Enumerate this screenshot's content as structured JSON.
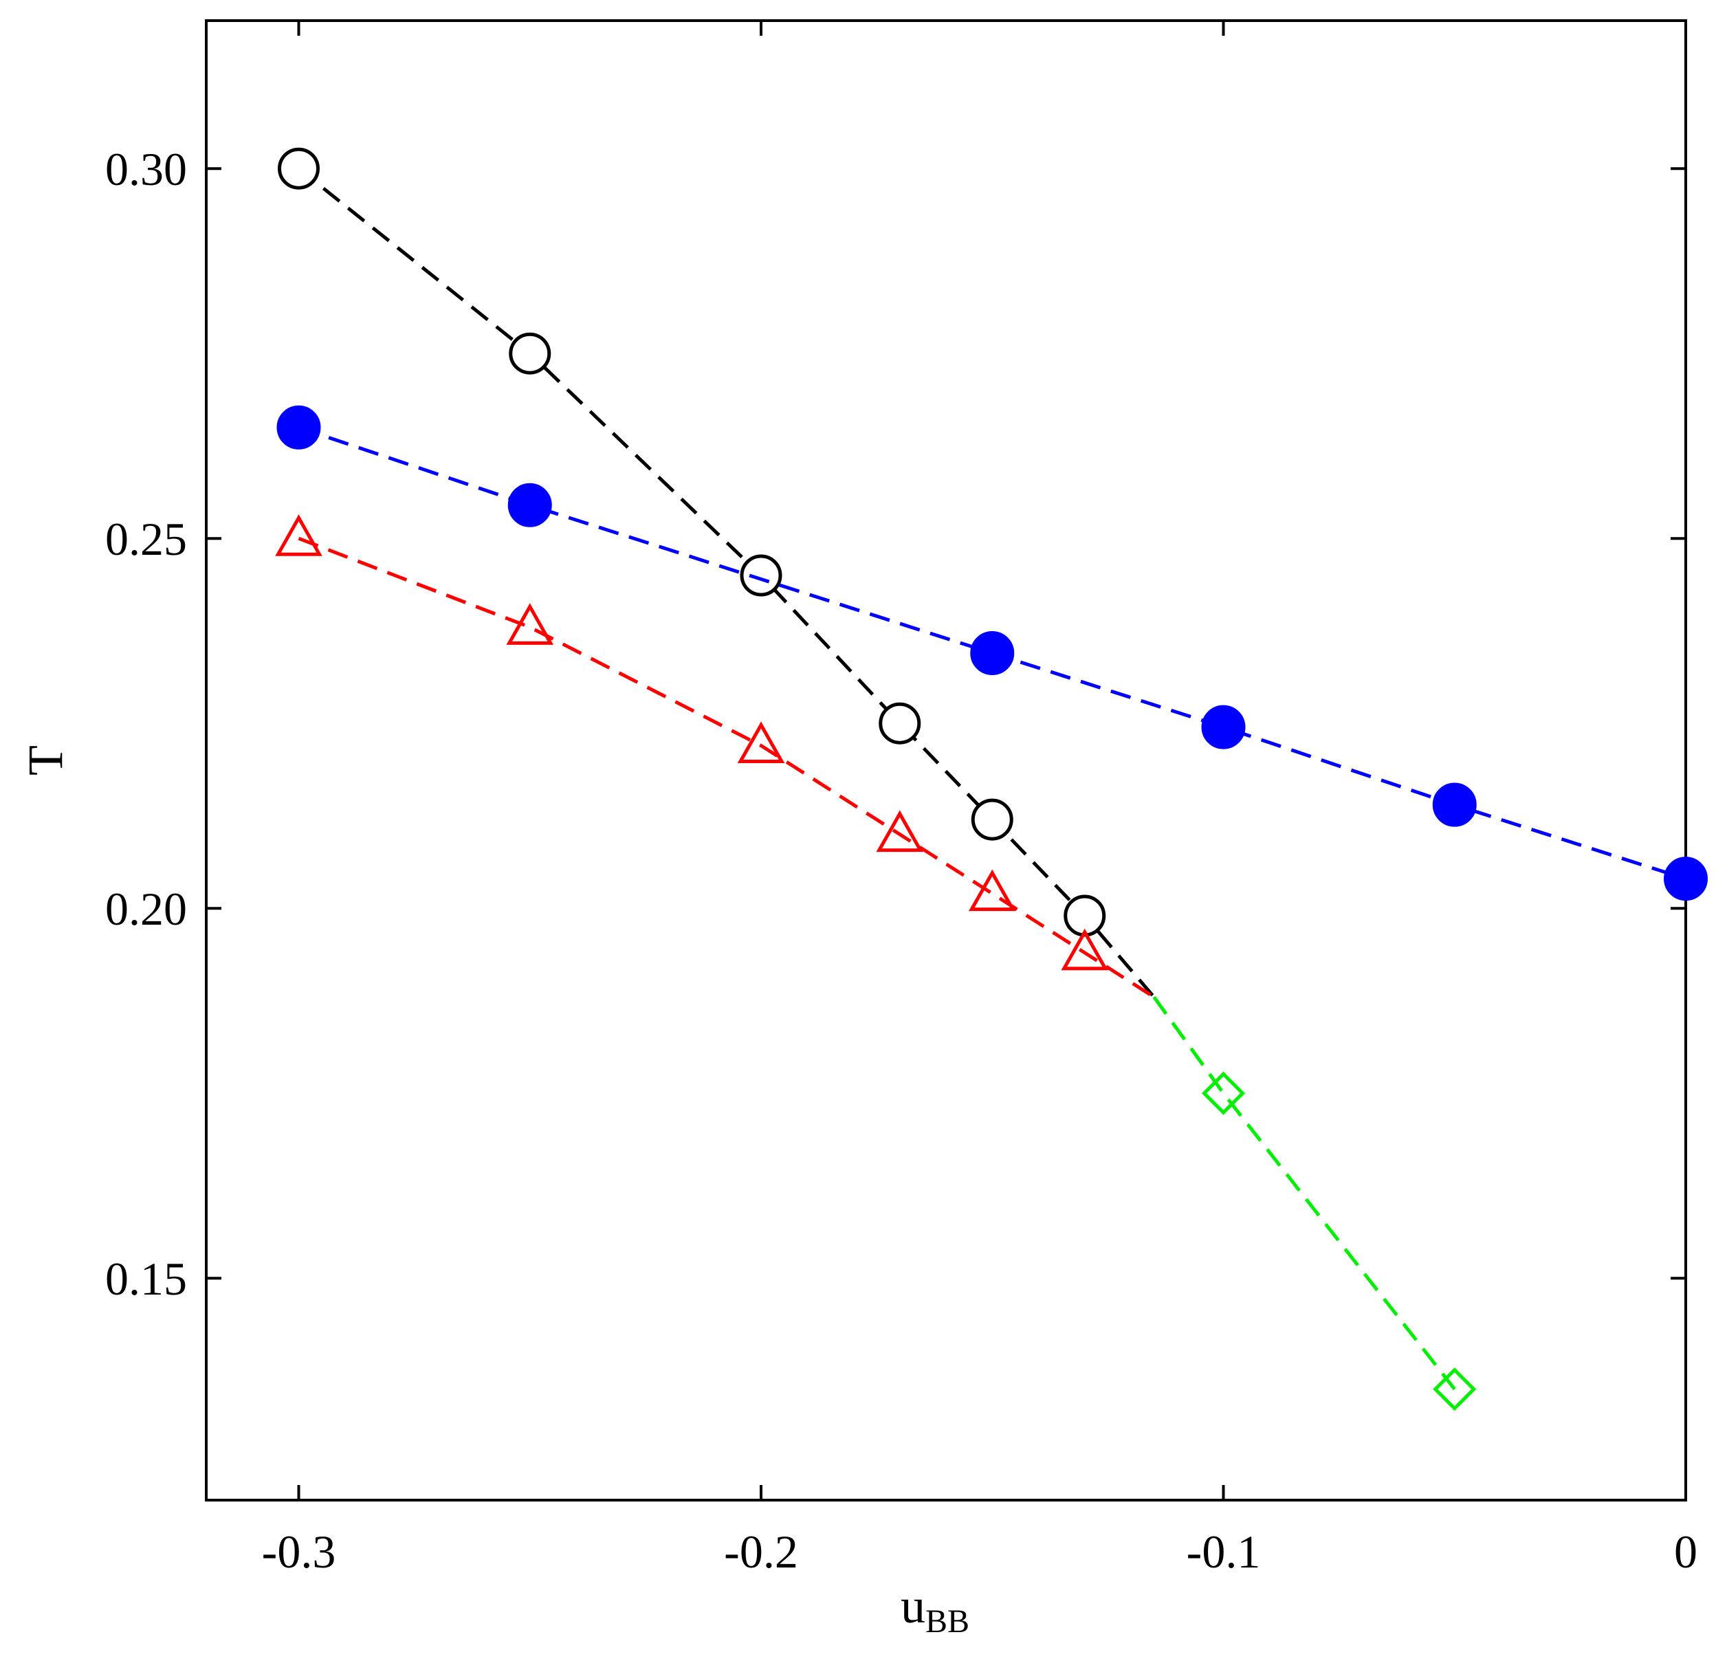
{
  "chart_data": {
    "type": "line",
    "xlabel": "u",
    "xlabel_subscript": "BB",
    "ylabel": "T",
    "xlim": [
      -0.32,
      0.0
    ],
    "ylim": [
      0.12,
      0.32
    ],
    "x_ticks": [
      -0.3,
      -0.2,
      -0.1,
      0.0
    ],
    "x_tick_labels": [
      "-0.3",
      "-0.2",
      "-0.1",
      "0"
    ],
    "y_ticks": [
      0.15,
      0.2,
      0.25,
      0.3
    ],
    "y_tick_labels": [
      "0.15",
      "0.20",
      "0.25",
      "0.30"
    ],
    "grid": false,
    "legend": "none",
    "series": [
      {
        "marker": "open-circle",
        "color": "#000000",
        "line": "dashed",
        "x": [
          -0.3,
          -0.25,
          -0.2,
          -0.17,
          -0.15,
          -0.13
        ],
        "y": [
          0.3,
          0.275,
          0.245,
          0.225,
          0.212,
          0.199
        ],
        "line_extension": {
          "x": -0.115,
          "y": 0.188
        }
      },
      {
        "marker": "filled-circle",
        "color": "#0000ff",
        "line": "dashed",
        "x": [
          -0.3,
          -0.25,
          -0.15,
          -0.1,
          -0.05,
          0.0
        ],
        "y": [
          0.265,
          0.2545,
          0.2345,
          0.2245,
          0.214,
          0.204
        ]
      },
      {
        "marker": "open-triangle",
        "color": "#ff0000",
        "line": "dashed",
        "x": [
          -0.3,
          -0.25,
          -0.2,
          -0.17,
          -0.15,
          -0.13
        ],
        "y": [
          0.25,
          0.238,
          0.222,
          0.21,
          0.202,
          0.194
        ],
        "line_extension": {
          "x": -0.115,
          "y": 0.188
        }
      },
      {
        "marker": "open-diamond",
        "color": "#00ee00",
        "line": "dashed",
        "x": [
          -0.115,
          -0.1,
          -0.05
        ],
        "y": [
          0.188,
          0.175,
          0.135
        ],
        "marker_skip_first": true
      }
    ]
  }
}
